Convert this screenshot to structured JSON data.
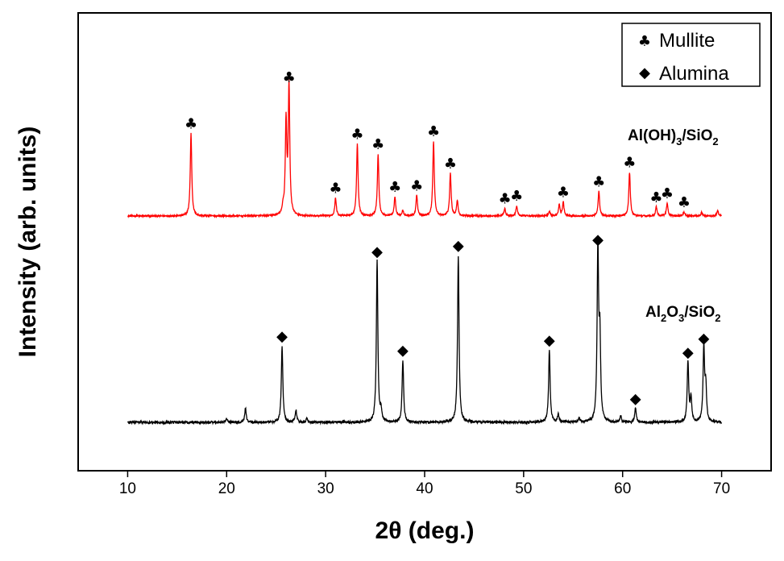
{
  "chart_data": {
    "type": "line",
    "xlabel": "2θ (deg.)",
    "ylabel": "Intensity (arb. units)",
    "xlim": [
      5,
      75
    ],
    "xticks": [
      10,
      20,
      30,
      40,
      50,
      60,
      70
    ],
    "yticks_shown": false,
    "legend": {
      "placement": "top-right",
      "entries": [
        {
          "symbol": "♣",
          "label": "Mullite"
        },
        {
          "symbol": "◆",
          "label": "Alumina"
        }
      ]
    },
    "series": [
      {
        "name": "Al(OH)3/SiO2",
        "label_main": "Al(OH)",
        "label_sub1": "3",
        "label_mid": "/SiO",
        "label_sub2": "2",
        "color": "#ff0000",
        "baseline": 0.06,
        "x_range": [
          10,
          70
        ],
        "marker": "♣",
        "peaks": [
          {
            "x": 16.4,
            "h": 0.64,
            "marked": true
          },
          {
            "x": 25.7,
            "h": 0.06,
            "marked": false
          },
          {
            "x": 26.0,
            "h": 0.72,
            "marked": false
          },
          {
            "x": 26.3,
            "h": 1.0,
            "marked": true
          },
          {
            "x": 31.0,
            "h": 0.14,
            "marked": true
          },
          {
            "x": 33.2,
            "h": 0.56,
            "marked": true
          },
          {
            "x": 35.3,
            "h": 0.48,
            "marked": true
          },
          {
            "x": 37.0,
            "h": 0.15,
            "marked": true
          },
          {
            "x": 37.8,
            "h": 0.04,
            "marked": false
          },
          {
            "x": 39.2,
            "h": 0.16,
            "marked": true
          },
          {
            "x": 40.9,
            "h": 0.58,
            "marked": true
          },
          {
            "x": 42.6,
            "h": 0.33,
            "marked": true
          },
          {
            "x": 43.3,
            "h": 0.12,
            "marked": false
          },
          {
            "x": 48.1,
            "h": 0.06,
            "marked": true
          },
          {
            "x": 49.3,
            "h": 0.08,
            "marked": true
          },
          {
            "x": 52.6,
            "h": 0.04,
            "marked": false
          },
          {
            "x": 53.6,
            "h": 0.09,
            "marked": false
          },
          {
            "x": 54.0,
            "h": 0.11,
            "marked": true
          },
          {
            "x": 57.6,
            "h": 0.19,
            "marked": true
          },
          {
            "x": 60.7,
            "h": 0.34,
            "marked": true
          },
          {
            "x": 63.4,
            "h": 0.07,
            "marked": true
          },
          {
            "x": 64.5,
            "h": 0.1,
            "marked": true
          },
          {
            "x": 66.2,
            "h": 0.03,
            "marked": true
          },
          {
            "x": 68.0,
            "h": 0.03,
            "marked": false
          },
          {
            "x": 69.6,
            "h": 0.04,
            "marked": false
          }
        ]
      },
      {
        "name": "Al2O3/SiO2",
        "label_main": "Al",
        "label_sub1": "2",
        "label_mid": "O",
        "label_sub1b": "3",
        "label_mid2": "/SiO",
        "label_sub2": "2",
        "color": "#000000",
        "baseline": 0.03,
        "x_range": [
          10,
          70
        ],
        "marker": "◆",
        "peaks": [
          {
            "x": 20.0,
            "h": 0.02,
            "marked": false
          },
          {
            "x": 21.9,
            "h": 0.07,
            "marked": false
          },
          {
            "x": 25.6,
            "h": 0.38,
            "marked": true
          },
          {
            "x": 27.0,
            "h": 0.06,
            "marked": false
          },
          {
            "x": 28.1,
            "h": 0.02,
            "marked": false
          },
          {
            "x": 35.2,
            "h": 0.8,
            "marked": true
          },
          {
            "x": 35.6,
            "h": 0.05,
            "marked": false
          },
          {
            "x": 37.8,
            "h": 0.31,
            "marked": true
          },
          {
            "x": 43.4,
            "h": 0.83,
            "marked": true
          },
          {
            "x": 52.6,
            "h": 0.36,
            "marked": true
          },
          {
            "x": 53.5,
            "h": 0.04,
            "marked": false
          },
          {
            "x": 55.6,
            "h": 0.02,
            "marked": false
          },
          {
            "x": 57.5,
            "h": 0.86,
            "marked": true
          },
          {
            "x": 57.7,
            "h": 0.4,
            "marked": false
          },
          {
            "x": 59.8,
            "h": 0.03,
            "marked": false
          },
          {
            "x": 61.3,
            "h": 0.07,
            "marked": true
          },
          {
            "x": 66.6,
            "h": 0.3,
            "marked": true
          },
          {
            "x": 66.9,
            "h": 0.12,
            "marked": false
          },
          {
            "x": 68.2,
            "h": 0.37,
            "marked": true
          },
          {
            "x": 68.4,
            "h": 0.17,
            "marked": false
          }
        ]
      }
    ]
  }
}
